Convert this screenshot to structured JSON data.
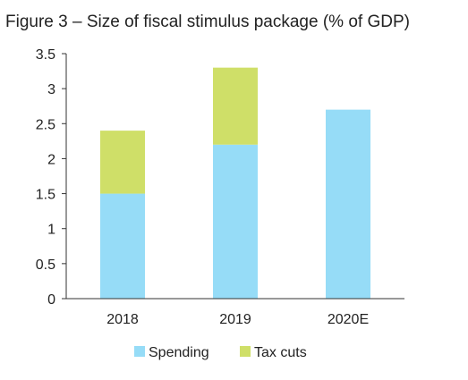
{
  "chart_data": {
    "type": "bar",
    "stacked": true,
    "title": "Figure 3 – Size of fiscal stimulus package (% of GDP)",
    "categories": [
      "2018",
      "2019",
      "2020E"
    ],
    "series": [
      {
        "name": "Spending",
        "values": [
          1.5,
          2.2,
          2.7
        ],
        "color": "#96dcf7"
      },
      {
        "name": "Tax cuts",
        "values": [
          0.9,
          1.1,
          0
        ],
        "color": "#cfdf68"
      }
    ],
    "y_ticks": [
      "0",
      "0.5",
      "1",
      "1.5",
      "2",
      "2.5",
      "3",
      "3.5"
    ],
    "ylim": [
      0,
      3.5
    ],
    "xlabel": "",
    "ylabel": "",
    "grid": false,
    "legend": "bottom"
  }
}
